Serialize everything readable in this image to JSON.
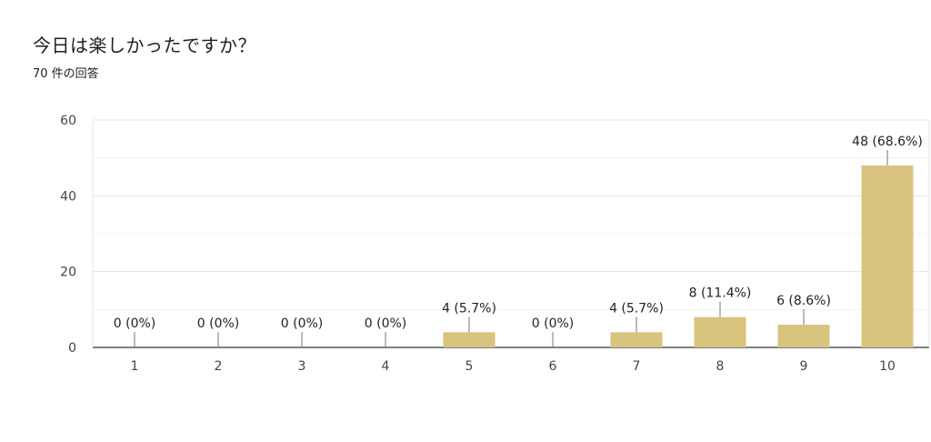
{
  "header": {
    "title": "今日は楽しかったですか？",
    "response_count": "70 件の回答"
  },
  "chart_data": {
    "type": "bar",
    "title": "今日は楽しかったですか？",
    "subtitle": "70 件の回答",
    "categories": [
      "1",
      "2",
      "3",
      "4",
      "5",
      "6",
      "7",
      "8",
      "9",
      "10"
    ],
    "values": [
      0,
      0,
      0,
      0,
      4,
      0,
      4,
      8,
      6,
      48
    ],
    "data_labels": [
      "0 (0%)",
      "0 (0%)",
      "0 (0%)",
      "0 (0%)",
      "4 (5.7%)",
      "0 (0%)",
      "4 (5.7%)",
      "8 (11.4%)",
      "6 (8.6%)",
      "48 (68.6%)"
    ],
    "ylim": [
      0,
      60
    ],
    "yticks": [
      0,
      20,
      40,
      60
    ],
    "grid": true,
    "bar_color": "#d8c47e"
  }
}
